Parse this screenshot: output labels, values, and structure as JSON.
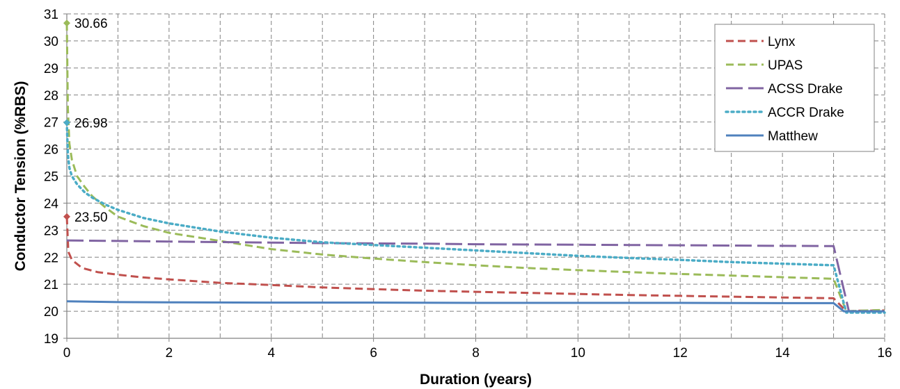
{
  "chart_data": {
    "type": "line",
    "title": "",
    "xlabel": "Duration (years)",
    "ylabel": "Conductor Tension (%RBS)",
    "xlim": [
      0,
      16
    ],
    "ylim": [
      19,
      31
    ],
    "xticks": [
      0,
      2,
      4,
      6,
      8,
      10,
      12,
      14,
      16
    ],
    "yticks": [
      19,
      20,
      21,
      22,
      23,
      24,
      25,
      26,
      27,
      28,
      29,
      30,
      31
    ],
    "grid": true,
    "legend_position": "top-right",
    "series": [
      {
        "name": "Lynx",
        "color": "#C0504D",
        "style": "dashed",
        "x": [
          0,
          0.03,
          0.1,
          0.3,
          0.6,
          1,
          1.5,
          2,
          3,
          4,
          5,
          6,
          7,
          8,
          9,
          10,
          11,
          12,
          13,
          14,
          15,
          15.25,
          15.5,
          16
        ],
        "y": [
          23.5,
          22.2,
          21.9,
          21.6,
          21.45,
          21.35,
          21.25,
          21.18,
          21.05,
          20.97,
          20.88,
          20.82,
          20.76,
          20.72,
          20.68,
          20.64,
          20.6,
          20.57,
          20.54,
          20.51,
          20.48,
          20.0,
          20.02,
          20.03
        ]
      },
      {
        "name": "UPAS",
        "color": "#9BBB59",
        "style": "dashed",
        "x": [
          0,
          0.02,
          0.05,
          0.1,
          0.2,
          0.35,
          0.5,
          0.75,
          1,
          1.5,
          2,
          3,
          4,
          5,
          6,
          7,
          8,
          9,
          10,
          11,
          12,
          13,
          14,
          15,
          15.25,
          15.5,
          16
        ],
        "y": [
          30.66,
          27.5,
          26.2,
          25.6,
          25.0,
          24.6,
          24.25,
          23.85,
          23.5,
          23.15,
          22.9,
          22.6,
          22.3,
          22.1,
          21.95,
          21.82,
          21.7,
          21.6,
          21.52,
          21.45,
          21.38,
          21.32,
          21.26,
          21.2,
          20.0,
          20.02,
          20.05
        ]
      },
      {
        "name": "ACSS Drake",
        "color": "#8064A2",
        "style": "longdash",
        "x": [
          0,
          1,
          2,
          3,
          4,
          5,
          6,
          7,
          8,
          9,
          10,
          11,
          12,
          13,
          14,
          15,
          15.3,
          15.5,
          16
        ],
        "y": [
          22.62,
          22.6,
          22.58,
          22.56,
          22.54,
          22.52,
          22.51,
          22.5,
          22.48,
          22.47,
          22.46,
          22.45,
          22.44,
          22.43,
          22.42,
          22.41,
          20.0,
          20.0,
          20.0
        ]
      },
      {
        "name": "ACCR Drake",
        "color": "#4BACC6",
        "style": "dotted",
        "x": [
          0,
          0.02,
          0.05,
          0.1,
          0.2,
          0.35,
          0.5,
          0.75,
          1,
          1.5,
          2,
          3,
          4,
          5,
          6,
          7,
          8,
          9,
          10,
          11,
          12,
          13,
          14,
          15,
          15.25,
          15.5,
          16
        ],
        "y": [
          26.98,
          25.8,
          25.3,
          25.0,
          24.7,
          24.4,
          24.2,
          23.95,
          23.75,
          23.45,
          23.25,
          22.95,
          22.72,
          22.55,
          22.45,
          22.35,
          22.25,
          22.15,
          22.05,
          21.97,
          21.9,
          21.82,
          21.76,
          21.7,
          19.95,
          19.95,
          19.95
        ]
      },
      {
        "name": "Matthew",
        "color": "#4F81BD",
        "style": "solid",
        "x": [
          0,
          1,
          2,
          4,
          6,
          8,
          10,
          12,
          14,
          15,
          15.2,
          15.5,
          16
        ],
        "y": [
          20.37,
          20.34,
          20.33,
          20.32,
          20.32,
          20.31,
          20.31,
          20.31,
          20.3,
          20.3,
          20.0,
          20.0,
          20.0
        ]
      }
    ],
    "annotations": [
      {
        "text": "30.66",
        "x": 0,
        "y": 30.66,
        "color": "#9BBB59"
      },
      {
        "text": "26.98",
        "x": 0,
        "y": 26.98,
        "color": "#4BACC6"
      },
      {
        "text": "23.50",
        "x": 0,
        "y": 23.5,
        "color": "#C0504D"
      }
    ]
  }
}
